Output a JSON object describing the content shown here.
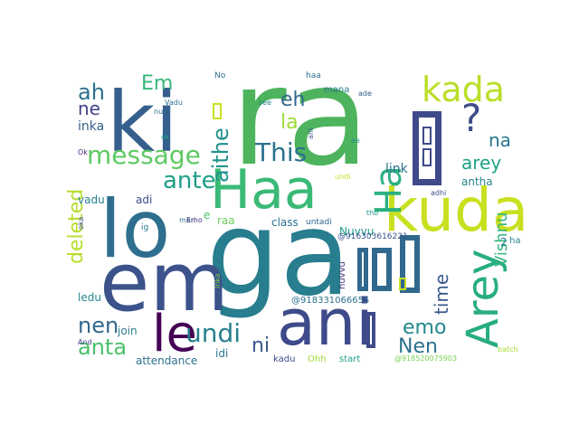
{
  "words": [
    {
      "text": "ra",
      "color": "#4db35c"
    },
    {
      "text": "ki",
      "color": "#355f8d"
    },
    {
      "text": "lo",
      "color": "#2e6e8e"
    },
    {
      "text": "ga",
      "color": "#287d8e"
    },
    {
      "text": "em",
      "color": "#3b528b"
    },
    {
      "text": "ani",
      "color": "#3e4a89"
    },
    {
      "text": "Haa",
      "color": "#3aba76"
    },
    {
      "text": "kuda",
      "color": "#c8e020"
    },
    {
      "text": "Arey",
      "color": "#27ad81"
    },
    {
      "text": "le",
      "color": "#440154"
    },
    {
      "text": "kada",
      "color": "#bade28"
    },
    {
      "text": "?",
      "color": "#3e4c8a"
    },
    {
      "text": "message",
      "color": "#5ec962"
    },
    {
      "text": "Ha",
      "color": "#2ab07f"
    },
    {
      "text": "This",
      "color": "#2c728e"
    },
    {
      "text": "ante",
      "color": "#1f9e89"
    },
    {
      "text": "aithe",
      "color": "#21918c"
    },
    {
      "text": "deleted",
      "color": "#b5de2b"
    },
    {
      "text": "undi",
      "color": "#277f8e"
    },
    {
      "text": "Em",
      "color": "#35b779"
    },
    {
      "text": "ah",
      "color": "#2d708e"
    },
    {
      "text": "eh",
      "color": "#31688e"
    },
    {
      "text": "la",
      "color": "#a0da39"
    },
    {
      "text": "ne",
      "color": "#404387"
    },
    {
      "text": "na",
      "color": "#2a788e"
    },
    {
      "text": "arey",
      "color": "#1fa287"
    },
    {
      "text": "nen",
      "color": "#31688e"
    },
    {
      "text": "anta",
      "color": "#4ac16d"
    },
    {
      "text": "emo",
      "color": "#23888e"
    },
    {
      "text": "Nen",
      "color": "#2c728e"
    },
    {
      "text": "ni",
      "color": "#39568c"
    },
    {
      "text": "time",
      "color": "#38598c"
    },
    {
      "text": "Vishnu",
      "color": "#31b57b"
    },
    {
      "text": "I",
      "color": "#3b528b"
    },
    {
      "text": "inka",
      "color": "#355f8d"
    },
    {
      "text": "link",
      "color": "#2d708e"
    },
    {
      "text": "vadu",
      "color": "#26828e"
    },
    {
      "text": "adi",
      "color": "#3e4a89"
    },
    {
      "text": "Nuvvu",
      "color": "#1f9e89"
    },
    {
      "text": "join",
      "color": "#287d8e"
    },
    {
      "text": "ledu",
      "color": "#24878e"
    },
    {
      "text": "antha",
      "color": "#25858e"
    },
    {
      "text": "class",
      "color": "#2c728e"
    },
    {
      "text": "idi",
      "color": "#2a788e"
    },
    {
      "text": "raa",
      "color": "#6ece58"
    },
    {
      "text": "attendance",
      "color": "#2d708e"
    },
    {
      "text": "kadu",
      "color": "#3e4989"
    },
    {
      "text": "start",
      "color": "#1f9e89"
    },
    {
      "text": "Ohh",
      "color": "#9fda3a"
    },
    {
      "text": "mana",
      "color": "#2b758e"
    },
    {
      "text": "@918331066655",
      "color": "#2d708e"
    },
    {
      "text": "@916303616221",
      "color": "#3b528b"
    },
    {
      "text": "@918520075903",
      "color": "#7ad151"
    },
    {
      "text": "untadi",
      "color": "#32648e"
    },
    {
      "text": "nuvvu",
      "color": "#46327e"
    },
    {
      "text": "2",
      "color": "#2a788e"
    },
    {
      "text": "ha",
      "color": "#25848e"
    },
    {
      "text": "e",
      "color": "#4ac16d"
    },
    {
      "text": "-",
      "color": "#3b528b"
    },
    {
      "text": "ig",
      "color": "#2a788e"
    },
    {
      "text": "Ok",
      "color": "#482677"
    },
    {
      "text": "ok",
      "color": "#1fa088"
    },
    {
      "text": "mari",
      "color": "#31688e"
    },
    {
      "text": "No",
      "color": "#2e6e8e"
    },
    {
      "text": "haa",
      "color": "#2e6e8e"
    },
    {
      "text": "ade",
      "color": "#355f8d"
    },
    {
      "text": "see",
      "color": "#287d8e"
    },
    {
      "text": "ani",
      "color": "#38598c"
    },
    {
      "text": "ee",
      "color": "#21918c"
    },
    {
      "text": "undi",
      "color": "#c0df25"
    },
    {
      "text": "tho",
      "color": "#21918c"
    },
    {
      "text": "adhi",
      "color": "#3b528b"
    },
    {
      "text": "Inka",
      "color": "#73d056"
    },
    {
      "text": "batch",
      "color": "#a5db36"
    },
    {
      "text": "And",
      "color": "#433e85"
    },
    {
      "text": "Vadu",
      "color": "#2b748e"
    },
    {
      "text": "nuv",
      "color": "#2d708e"
    },
    {
      "text": "Emo",
      "color": "#46327e"
    },
    {
      "text": "oka",
      "color": "#3e4a89"
    }
  ]
}
